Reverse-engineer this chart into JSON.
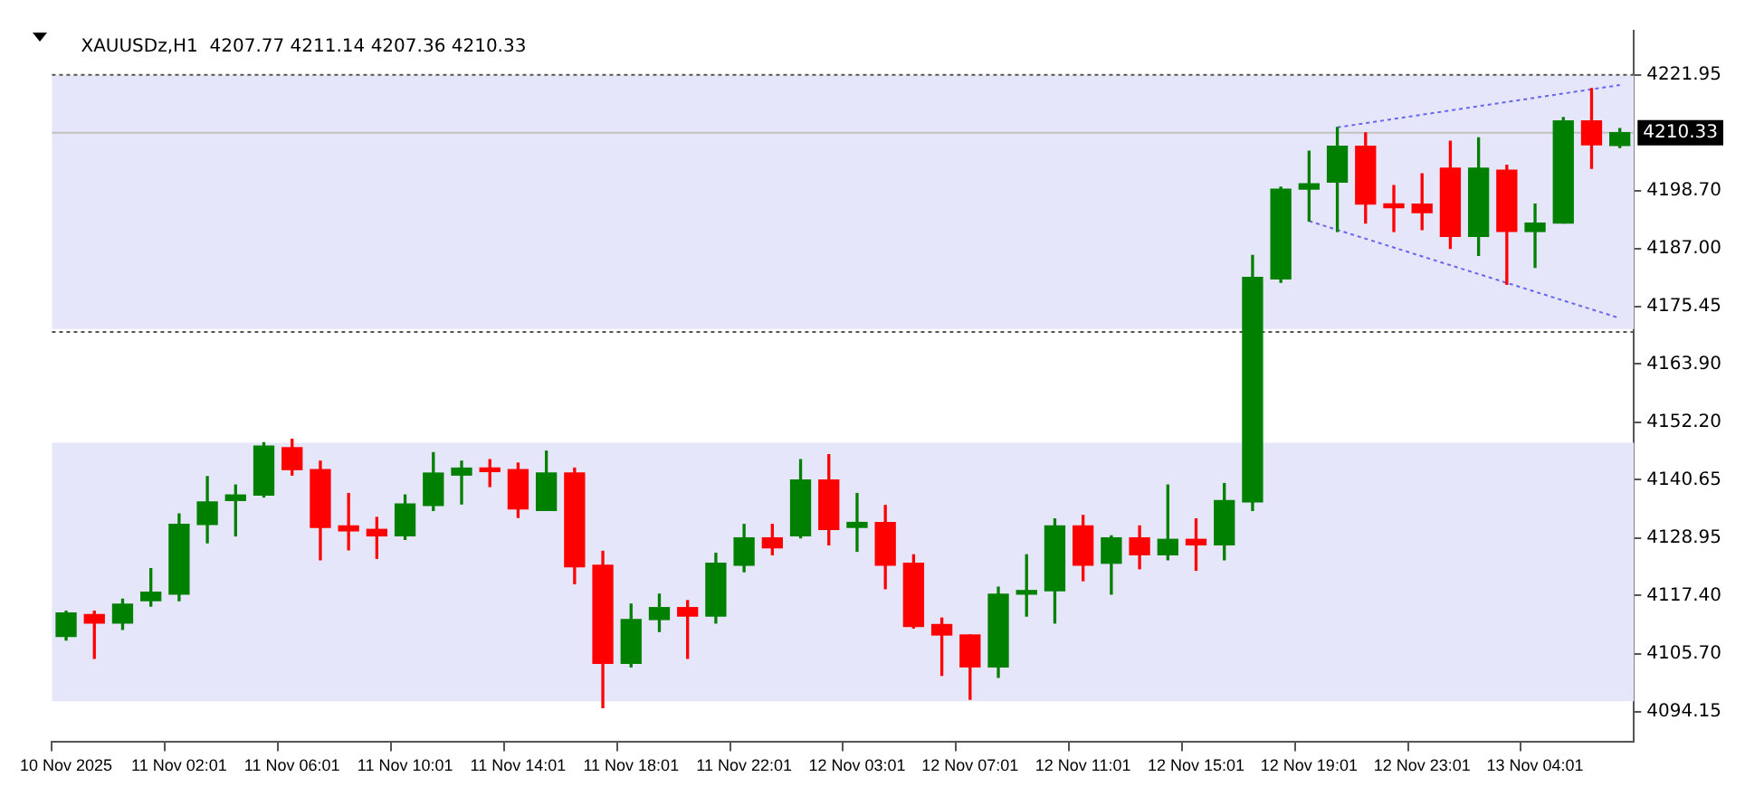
{
  "chart_data": {
    "type": "candlestick",
    "title": "XAUUSDz,H1  4207.77 4211.14 4207.36 4210.33",
    "categories": [
      "10 Nov 2025",
      null,
      null,
      null,
      "11 Nov 02:01",
      null,
      null,
      null,
      "11 Nov 06:01",
      null,
      null,
      null,
      "11 Nov 10:01",
      null,
      null,
      null,
      "11 Nov 14:01",
      null,
      null,
      null,
      "11 Nov 18:01",
      null,
      null,
      null,
      "11 Nov 22:01",
      null,
      null,
      null,
      "12 Nov 03:01",
      null,
      null,
      null,
      "12 Nov 07:01",
      null,
      null,
      null,
      "12 Nov 11:01",
      null,
      null,
      null,
      "12 Nov 15:01",
      null,
      null,
      null,
      "12 Nov 19:01",
      null,
      null,
      null,
      "12 Nov 23:01",
      null,
      null,
      null,
      "13 Nov 04:01",
      null,
      null,
      null
    ],
    "ohlc": [
      [
        4109.2,
        4114.3,
        4108.5,
        4113.9
      ],
      [
        4113.6,
        4114.3,
        4104.8,
        4111.9
      ],
      [
        4111.9,
        4116.7,
        4110.6,
        4115.7
      ],
      [
        4116.4,
        4122.8,
        4115.3,
        4118.1
      ],
      [
        4117.7,
        4133.8,
        4116.4,
        4131.7
      ],
      [
        4131.7,
        4141.3,
        4128.0,
        4136.2
      ],
      [
        4136.5,
        4139.6,
        4129.4,
        4137.6
      ],
      [
        4137.6,
        4148.1,
        4137.2,
        4147.4
      ],
      [
        4147.1,
        4148.8,
        4141.6,
        4142.7
      ],
      [
        4142.7,
        4144.4,
        4124.6,
        4131.1
      ],
      [
        4131.4,
        4137.9,
        4126.6,
        4130.4
      ],
      [
        4130.7,
        4133.1,
        4124.9,
        4129.4
      ],
      [
        4129.4,
        4137.6,
        4128.7,
        4135.8
      ],
      [
        4135.5,
        4146.1,
        4134.5,
        4142.0
      ],
      [
        4141.6,
        4144.4,
        4135.8,
        4143.0
      ],
      [
        4143.0,
        4144.7,
        4139.3,
        4142.3
      ],
      [
        4142.7,
        4144.0,
        4133.1,
        4134.8
      ],
      [
        4134.5,
        4146.4,
        4134.5,
        4142.0
      ],
      [
        4142.0,
        4143.0,
        4119.8,
        4123.2
      ],
      [
        4123.5,
        4126.3,
        4094.9,
        4103.8
      ],
      [
        4103.8,
        4115.7,
        4103.1,
        4112.6
      ],
      [
        4112.6,
        4117.7,
        4110.2,
        4115.0
      ],
      [
        4115.0,
        4116.4,
        4104.8,
        4113.3
      ],
      [
        4113.3,
        4125.9,
        4111.9,
        4123.9
      ],
      [
        4123.5,
        4131.7,
        4122.2,
        4129.0
      ],
      [
        4129.0,
        4131.7,
        4125.6,
        4127.0
      ],
      [
        4129.4,
        4144.7,
        4129.0,
        4140.6
      ],
      [
        4140.6,
        4145.7,
        4127.6,
        4130.7
      ],
      [
        4131.1,
        4137.9,
        4126.3,
        4132.1
      ],
      [
        4132.1,
        4135.5,
        4118.8,
        4123.5
      ],
      [
        4123.9,
        4125.6,
        4110.9,
        4111.2
      ],
      [
        4111.6,
        4112.9,
        4101.4,
        4109.5
      ],
      [
        4109.5,
        4109.5,
        4096.6,
        4103.1
      ],
      [
        4103.1,
        4119.1,
        4101.0,
        4117.7
      ],
      [
        4117.7,
        4125.6,
        4113.3,
        4118.4
      ],
      [
        4118.4,
        4132.8,
        4111.9,
        4131.4
      ],
      [
        4131.4,
        4133.5,
        4120.4,
        4123.5
      ],
      [
        4123.9,
        4129.4,
        4117.7,
        4129.0
      ],
      [
        4129.0,
        4131.4,
        4122.8,
        4125.6
      ],
      [
        4125.6,
        4139.6,
        4124.6,
        4128.7
      ],
      [
        4128.7,
        4132.8,
        4122.5,
        4127.6
      ],
      [
        4127.6,
        4139.9,
        4124.6,
        4136.5
      ],
      [
        4136.2,
        4185.7,
        4134.5,
        4181.3
      ],
      [
        4181.0,
        4199.4,
        4180.3,
        4199.0
      ],
      [
        4199.0,
        4206.6,
        4192.6,
        4200.1
      ],
      [
        4200.4,
        4211.4,
        4190.5,
        4207.6
      ],
      [
        4207.6,
        4210.3,
        4192.2,
        4196.0
      ],
      [
        4196.0,
        4199.7,
        4190.5,
        4195.3
      ],
      [
        4196.0,
        4202.1,
        4190.9,
        4194.3
      ],
      [
        4203.2,
        4208.6,
        4187.1,
        4189.5
      ],
      [
        4189.5,
        4209.3,
        4185.7,
        4203.2
      ],
      [
        4202.8,
        4203.8,
        4179.9,
        4190.5
      ],
      [
        4190.5,
        4196.0,
        4183.3,
        4192.2
      ],
      [
        4192.2,
        4213.4,
        4192.2,
        4212.7
      ],
      [
        4212.7,
        4219.2,
        4203.2,
        4207.9
      ],
      [
        4207.77,
        4211.14,
        4207.36,
        4210.33
      ]
    ],
    "colors": [
      "#008000",
      "#ff0000",
      "#008000",
      "#008000",
      "#008000",
      "#008000",
      "#008000",
      "#008000",
      "#ff0000",
      "#ff0000",
      "#ff0000",
      "#ff0000",
      "#008000",
      "#008000",
      "#008000",
      "#ff0000",
      "#ff0000",
      "#008000",
      "#ff0000",
      "#ff0000",
      "#008000",
      "#008000",
      "#ff0000",
      "#008000",
      "#008000",
      "#ff0000",
      "#008000",
      "#ff0000",
      "#008000",
      "#ff0000",
      "#ff0000",
      "#ff0000",
      "#ff0000",
      "#008000",
      "#008000",
      "#008000",
      "#ff0000",
      "#008000",
      "#ff0000",
      "#008000",
      "#ff0000",
      "#008000",
      "#008000",
      "#008000",
      "#008000",
      "#008000",
      "#ff0000",
      "#ff0000",
      "#ff0000",
      "#ff0000",
      "#008000",
      "#ff0000",
      "#008000",
      "#008000",
      "#ff0000",
      "#008000"
    ],
    "series": [
      {
        "type": "line",
        "color": "#6666ee",
        "line_style": "dotted",
        "values": [
          null,
          null,
          null,
          null,
          null,
          null,
          null,
          null,
          null,
          null,
          null,
          null,
          null,
          null,
          null,
          null,
          null,
          null,
          null,
          null,
          null,
          null,
          null,
          null,
          null,
          null,
          null,
          null,
          null,
          null,
          null,
          null,
          null,
          null,
          null,
          null,
          null,
          null,
          null,
          null,
          null,
          null,
          null,
          null,
          null,
          4211.4,
          null,
          null,
          null,
          null,
          null,
          null,
          null,
          null,
          null,
          4219.9
        ]
      },
      {
        "type": "line",
        "color": "#6666ee",
        "line_style": "dotted",
        "values": [
          null,
          null,
          null,
          null,
          null,
          null,
          null,
          null,
          null,
          null,
          null,
          null,
          null,
          null,
          null,
          null,
          null,
          null,
          null,
          null,
          null,
          null,
          null,
          null,
          null,
          null,
          null,
          null,
          null,
          null,
          null,
          null,
          null,
          null,
          null,
          null,
          null,
          null,
          null,
          null,
          null,
          null,
          null,
          null,
          4192.6,
          null,
          null,
          null,
          null,
          null,
          null,
          null,
          null,
          null,
          null,
          4173.1
        ]
      }
    ],
    "ylim": [
      4088.0,
      4230.8
    ],
    "yticks": [
      4221.95,
      {
        "value": 4198.7,
        "label": "4198.70"
      },
      {
        "value": 4187,
        "label": "4187.00"
      },
      4175.45,
      {
        "value": 4163.9,
        "label": "4163.90"
      },
      {
        "value": 4152.2,
        "label": "4152.20"
      },
      4140.65,
      4128.95,
      {
        "value": 4117.4,
        "label": "4117.40"
      },
      {
        "value": 4105.7,
        "label": "4105.70"
      },
      4094.15
    ],
    "ref_lines": [
      {
        "axis": "y",
        "value": 4221.95,
        "color": "#555555",
        "line_style": "dotted"
      },
      {
        "axis": "y",
        "value": 4170.35,
        "color": "#555555",
        "line_style": "dotted"
      },
      {
        "axis": "y",
        "value": 4210.33,
        "label": "4210.33",
        "color": "#c0c0c0",
        "line_style": "solid"
      }
    ],
    "bands": [
      {
        "axis": "y",
        "from": 4096.2,
        "to": 4148.1,
        "color": "#e6e6fa"
      },
      {
        "axis": "y",
        "from": 4170.9,
        "to": 4221.95,
        "color": "#e6e6fa"
      }
    ],
    "grid": false,
    "legend": false,
    "marker": "none"
  }
}
